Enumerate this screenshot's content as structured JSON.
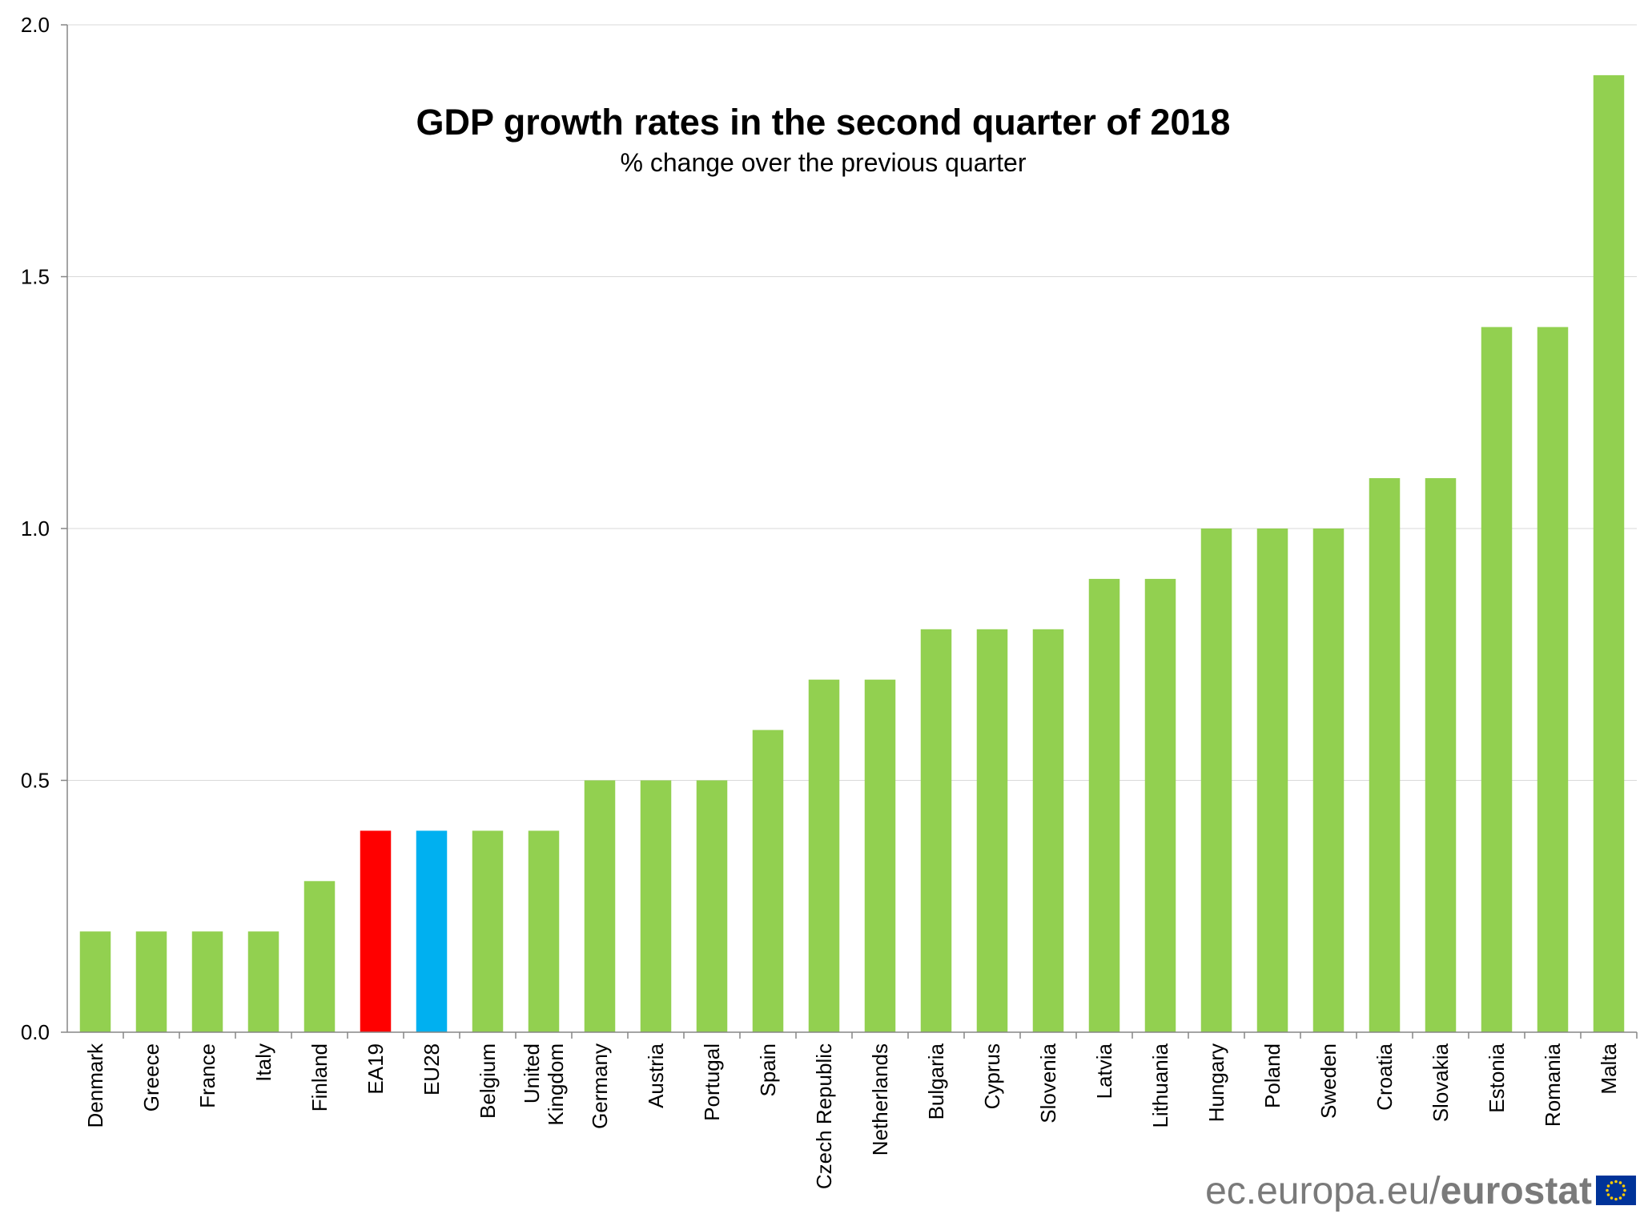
{
  "chart_data": {
    "type": "bar",
    "title": "GDP growth rates in the second quarter of 2018",
    "subtitle": "% change over the previous quarter",
    "categories": [
      "Denmark",
      "Greece",
      "France",
      "Italy",
      "Finland",
      "EA19",
      "EU28",
      "Belgium",
      "United Kingdom",
      "Germany",
      "Austria",
      "Portugal",
      "Spain",
      "Czech Republic",
      "Netherlands",
      "Bulgaria",
      "Cyprus",
      "Slovenia",
      "Latvia",
      "Lithuania",
      "Hungary",
      "Poland",
      "Sweden",
      "Croatia",
      "Slovakia",
      "Estonia",
      "Romania",
      "Malta"
    ],
    "values": [
      0.2,
      0.2,
      0.2,
      0.2,
      0.3,
      0.4,
      0.4,
      0.4,
      0.4,
      0.5,
      0.5,
      0.5,
      0.6,
      0.7,
      0.7,
      0.8,
      0.8,
      0.8,
      0.9,
      0.9,
      1.0,
      1.0,
      1.0,
      1.1,
      1.1,
      1.4,
      1.4,
      1.9
    ],
    "ylim": [
      0,
      2.0
    ],
    "yticks": [
      "0.0",
      "0.5",
      "1.0",
      "1.5",
      "2.0"
    ],
    "grid": true,
    "xlabel": "",
    "ylabel": "",
    "colors": {
      "default": "#92d050",
      "EA19": "#ff0000",
      "EU28": "#00b0f0"
    }
  },
  "logo": {
    "text_light": "ec.europa.eu/",
    "text_bold": "eurostat",
    "flag_icon": "eu-flag-icon"
  }
}
